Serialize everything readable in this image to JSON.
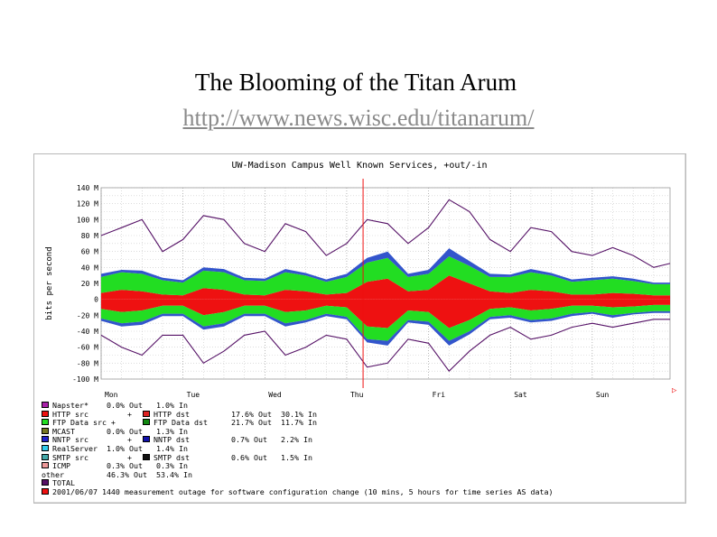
{
  "slide": {
    "title": "The Blooming of the Titan Arum",
    "link": "http://www.news.wisc.edu/titanarum/"
  },
  "chart_data": {
    "type": "area",
    "title": "UW-Madison Campus Well Known Services, +out/-in",
    "ylabel": "bits per second",
    "ylim": [
      -100,
      140
    ],
    "grid": true,
    "y_ticks": [
      "140 M",
      "120 M",
      "100 M",
      "80 M",
      "60 M",
      "40 M",
      "20 M",
      "0",
      "-20 M",
      "-40 M",
      "-60 M",
      "-80 M",
      "-100 M"
    ],
    "y_tick_values": [
      140,
      120,
      100,
      80,
      60,
      40,
      20,
      0,
      -20,
      -40,
      -60,
      -80,
      -100
    ],
    "x_ticks": [
      "Mon",
      "Tue",
      "Wed",
      "Thu",
      "Fri",
      "Sat",
      "Sun"
    ],
    "x_tick_values": [
      0,
      1,
      2,
      3,
      4,
      5,
      6
    ],
    "xlim": [
      0,
      6.95
    ],
    "marker_line_x": 3.2,
    "x": [
      0,
      0.25,
      0.5,
      0.75,
      1,
      1.25,
      1.5,
      1.75,
      2,
      2.25,
      2.5,
      2.75,
      3,
      3.25,
      3.5,
      3.75,
      4,
      4.25,
      4.5,
      4.75,
      5,
      5.25,
      5.5,
      5.75,
      6,
      6.25,
      6.5,
      6.75,
      6.95
    ],
    "series": [
      {
        "name": "HTTP src + HTTP dst",
        "color": "#ee1111",
        "out": [
          8,
          12,
          10,
          6,
          5,
          14,
          12,
          6,
          5,
          12,
          10,
          6,
          8,
          22,
          26,
          10,
          12,
          30,
          20,
          10,
          8,
          12,
          10,
          6,
          6,
          8,
          7,
          5,
          5
        ],
        "in": [
          -12,
          -16,
          -14,
          -8,
          -8,
          -20,
          -16,
          -8,
          -8,
          -16,
          -14,
          -8,
          -10,
          -34,
          -36,
          -14,
          -16,
          -36,
          -26,
          -12,
          -10,
          -14,
          -12,
          -8,
          -8,
          -10,
          -9,
          -7,
          -7
        ]
      },
      {
        "name": "FTP Data src + FTP Data dst",
        "color": "#22dd22",
        "out": [
          20,
          22,
          22,
          18,
          16,
          22,
          22,
          18,
          18,
          22,
          20,
          16,
          20,
          24,
          26,
          18,
          20,
          24,
          22,
          18,
          20,
          22,
          20,
          16,
          18,
          18,
          16,
          14,
          14
        ],
        "in": [
          -12,
          -14,
          -14,
          -10,
          -10,
          -14,
          -14,
          -10,
          -10,
          -14,
          -12,
          -10,
          -12,
          -16,
          -16,
          -12,
          -12,
          -16,
          -14,
          -10,
          -10,
          -12,
          -12,
          -10,
          -8,
          -10,
          -8,
          -8,
          -8
        ]
      },
      {
        "name": "other",
        "color": "#3355cc",
        "out": [
          4,
          3,
          4,
          3,
          3,
          4,
          4,
          3,
          3,
          4,
          3,
          3,
          4,
          6,
          8,
          4,
          5,
          10,
          6,
          4,
          3,
          4,
          3,
          3,
          3,
          3,
          3,
          2,
          2
        ],
        "in": [
          -3,
          -4,
          -4,
          -3,
          -3,
          -4,
          -4,
          -3,
          -3,
          -4,
          -3,
          -3,
          -3,
          -4,
          -6,
          -3,
          -4,
          -6,
          -4,
          -3,
          -3,
          -3,
          -3,
          -3,
          -2,
          -3,
          -2,
          -2,
          -2
        ]
      },
      {
        "name": "TOTAL",
        "color": "#551166",
        "out": [
          80,
          90,
          100,
          60,
          75,
          105,
          100,
          70,
          60,
          95,
          85,
          55,
          70,
          100,
          95,
          70,
          90,
          125,
          110,
          75,
          60,
          90,
          85,
          60,
          55,
          65,
          55,
          40,
          45
        ],
        "in": [
          -45,
          -60,
          -70,
          -45,
          -45,
          -80,
          -65,
          -45,
          -40,
          -70,
          -60,
          -45,
          -50,
          -85,
          -80,
          -50,
          -55,
          -90,
          -65,
          -45,
          -35,
          -50,
          -45,
          -35,
          -30,
          -35,
          -30,
          -25,
          -25
        ]
      }
    ],
    "legend": [
      {
        "color": "#aa22aa",
        "left": "Napster*",
        "out": "0.0% Out",
        "in": "1.0% In"
      },
      {
        "color": "#ee1111",
        "left": "HTTP src",
        "plus": "+",
        "color2": "#dd2222",
        "right": "HTTP dst",
        "out": "17.6% Out",
        "in": "30.1% In"
      },
      {
        "color": "#22dd22",
        "left": "FTP Data src +",
        "color2": "#118811",
        "right": "FTP Data dst",
        "out": "21.7% Out",
        "in": "11.7% In"
      },
      {
        "color": "#777722",
        "left": "MCAST",
        "out": "0.0% Out",
        "in": "1.3% In"
      },
      {
        "color": "#2222cc",
        "left": "NNTP src",
        "plus": "+",
        "color2": "#1111aa",
        "right": "NNTP dst",
        "out": "0.7% Out",
        "in": "2.2% In"
      },
      {
        "color": "#33ccee",
        "left": "RealServer",
        "out": "1.0% Out",
        "in": "1.4% In"
      },
      {
        "color": "#44aaaa",
        "left": "SMTP src",
        "plus": "+",
        "color2": "#111111",
        "right": "SMTP dst",
        "out": "0.6% Out",
        "in": "1.5% In"
      },
      {
        "color": "#ee9999",
        "left": "ICMP",
        "out": "0.3% Out",
        "in": "0.3% In"
      },
      {
        "left": "other",
        "out": "46.3% Out",
        "in": "53.4% In"
      },
      {
        "color": "#551166",
        "left": "TOTAL"
      },
      {
        "color": "#ee1111",
        "left": "2001/06/07 1440 measurement outage for software configuration change (10 mins, 5 hours for time series AS data)"
      }
    ]
  }
}
